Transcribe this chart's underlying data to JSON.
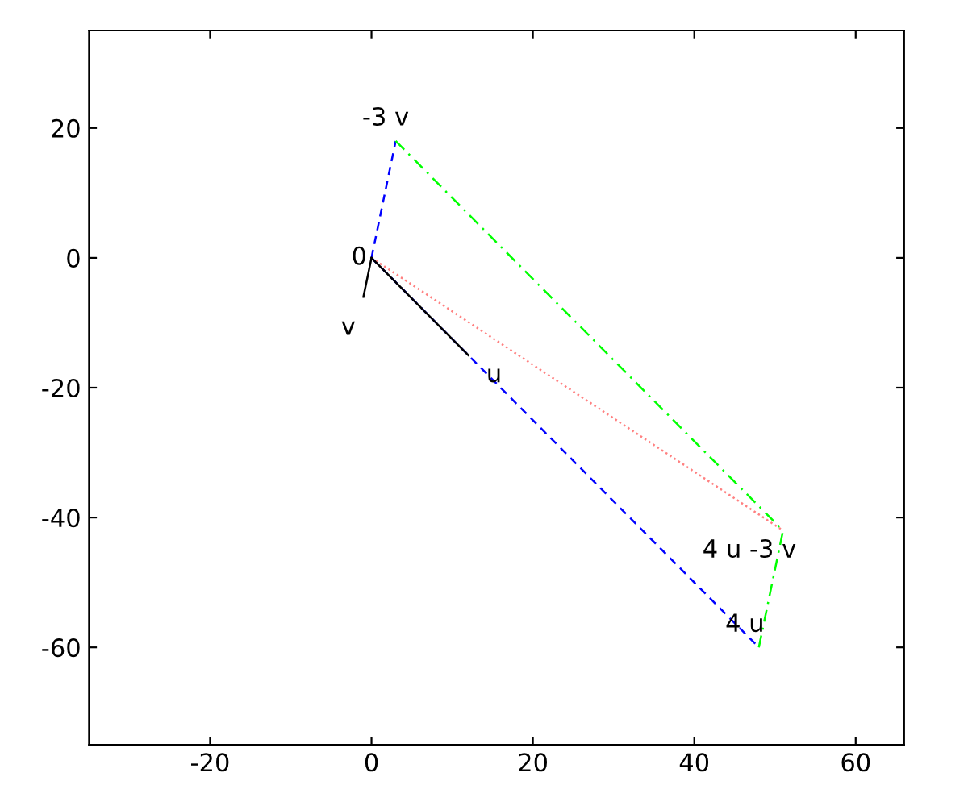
{
  "chart_data": {
    "type": "line",
    "xlim": [
      -35,
      66
    ],
    "ylim": [
      -75,
      35
    ],
    "xticks": [
      -20,
      0,
      20,
      40,
      60
    ],
    "yticks": [
      -60,
      -40,
      -20,
      0,
      20
    ],
    "grid": false,
    "legend": false,
    "marker": "none",
    "series": [
      {
        "color": "#0000ff",
        "line_style": "dashed",
        "x": [
          0,
          48
        ],
        "values": [
          0,
          -60
        ]
      },
      {
        "color": "#0000ff",
        "line_style": "dashed",
        "x": [
          0,
          3
        ],
        "values": [
          0,
          18
        ]
      },
      {
        "color": "#00ff00",
        "line_style": "dashdot",
        "x": [
          3,
          51
        ],
        "values": [
          18,
          -42
        ]
      },
      {
        "color": "#00ff00",
        "line_style": "dashdot",
        "x": [
          48,
          51
        ],
        "values": [
          -60,
          -42
        ]
      },
      {
        "color": "#ff8080",
        "line_style": "dotted",
        "x": [
          0,
          51
        ],
        "values": [
          0,
          -42
        ]
      },
      {
        "color": "#000000",
        "line_style": "solid",
        "x": [
          0,
          12
        ],
        "values": [
          0,
          -15
        ]
      },
      {
        "color": "#000000",
        "line_style": "solid",
        "x": [
          0,
          -1
        ],
        "values": [
          0,
          -6
        ]
      }
    ],
    "annotations": [
      {
        "text": "0",
        "x": 0,
        "y": 0
      },
      {
        "text": "v",
        "x": -1,
        "y": -6
      },
      {
        "text": "u",
        "x": 12,
        "y": -15
      },
      {
        "text": "-3 v",
        "x": 3,
        "y": 18
      },
      {
        "text": "4 u",
        "x": 48,
        "y": -60
      },
      {
        "text": "4 u -3 v",
        "x": 51,
        "y": -42
      }
    ]
  }
}
